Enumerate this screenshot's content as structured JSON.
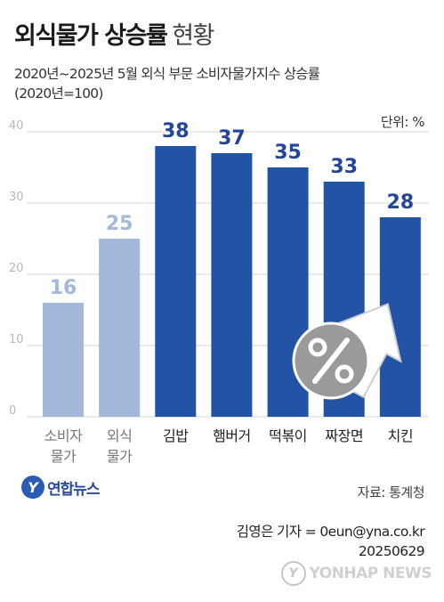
{
  "header": {
    "title_bold": "외식물가 상승률",
    "title_light": "현황",
    "subtitle_line1": "2020년~2025년 5월 외식 부문 소비자물가지수 상승률",
    "subtitle_line2": "(2020년=100)",
    "unit": "단위: %"
  },
  "colors": {
    "light_bar": "#a3b9da",
    "dark_bar": "#2353a4",
    "light_value": "#a3b9da",
    "dark_value": "#23459a",
    "percent_badge": "#9a9a9a",
    "arrow": "#ffffff"
  },
  "chart_data": {
    "type": "bar",
    "title": "외식물가 상승률 현황",
    "categories": [
      [
        "소비자",
        "물가"
      ],
      [
        "외식",
        "물가"
      ],
      [
        "김밥"
      ],
      [
        "햄버거"
      ],
      [
        "떡볶이"
      ],
      [
        "짜장면"
      ],
      [
        "치킨"
      ]
    ],
    "values": [
      16,
      25,
      38,
      37,
      35,
      33,
      28
    ],
    "highlight": [
      false,
      false,
      true,
      true,
      true,
      true,
      true
    ],
    "ylim": [
      0,
      40
    ],
    "yticks": [
      0,
      10,
      20,
      30,
      40
    ],
    "grid": true,
    "icon": "percent-up-arrow-icon"
  },
  "footer": {
    "logo_mark": "Y",
    "logo_text": "연합뉴스",
    "source": "자료: 통계청",
    "byline_line1": "김영은 기자 = 0eun@yna.co.kr",
    "byline_line2": "20250629",
    "watermark_mark": "Y",
    "watermark_text": "YONHAP NEWS"
  }
}
